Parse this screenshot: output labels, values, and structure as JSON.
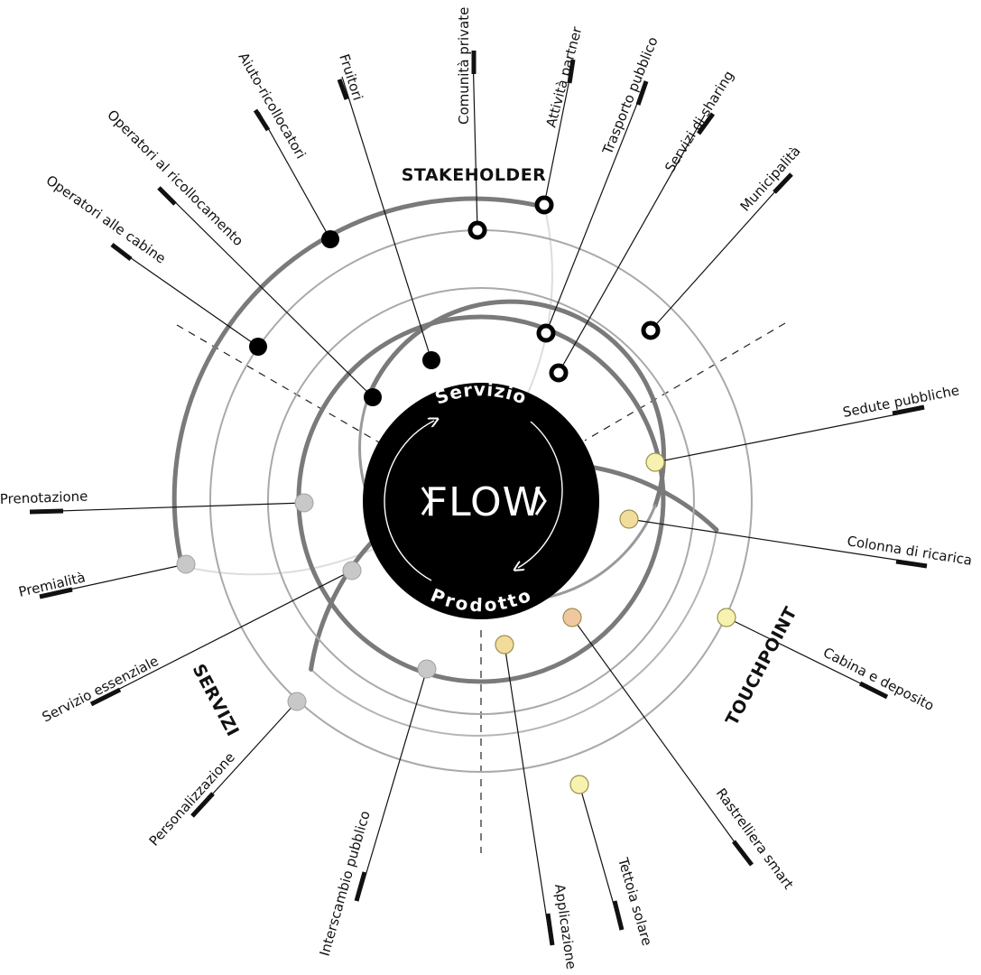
{
  "center": {
    "top_word": "Servizio",
    "bottom_word": "Prodotto",
    "logo": "FLOW",
    "colors": {
      "disc": "#000000",
      "text": "#ffffff"
    }
  },
  "sections": {
    "stakeholder": "STAKEHOLDER",
    "servizi": "SERVIZI",
    "touchpoint": "TOUCHPOINT"
  },
  "stakeholder_items": [
    "Comunità private",
    "Attività partner",
    "Trasporto pubblico",
    "Servizi di sharing",
    "Municipalità",
    "Fruitori",
    "Aiuto-ricollocatori",
    "Operatori al ricollocamento",
    "Operatori alle cabine"
  ],
  "touchpoint_items": [
    "Sedute pubbliche",
    "Colonna di ricarica",
    "Cabina e deposito",
    "Rastrelliera smart",
    "Tettoia solare",
    "Applicazione"
  ],
  "servizi_items": [
    "Prenotazione",
    "Premialità",
    "Servizio essenziale",
    "Personalizzazione",
    "Interscambio pubblico"
  ],
  "colors": {
    "ring_dark": "#7a7a7a",
    "ring_mid": "#a8a8a8",
    "ring_light": "#d8d8d8",
    "touchpoint_marker": "#f7f2b0",
    "touchpoint_marker_alt": "#f0c8a0",
    "servizi_marker": "#c4c4c4"
  }
}
